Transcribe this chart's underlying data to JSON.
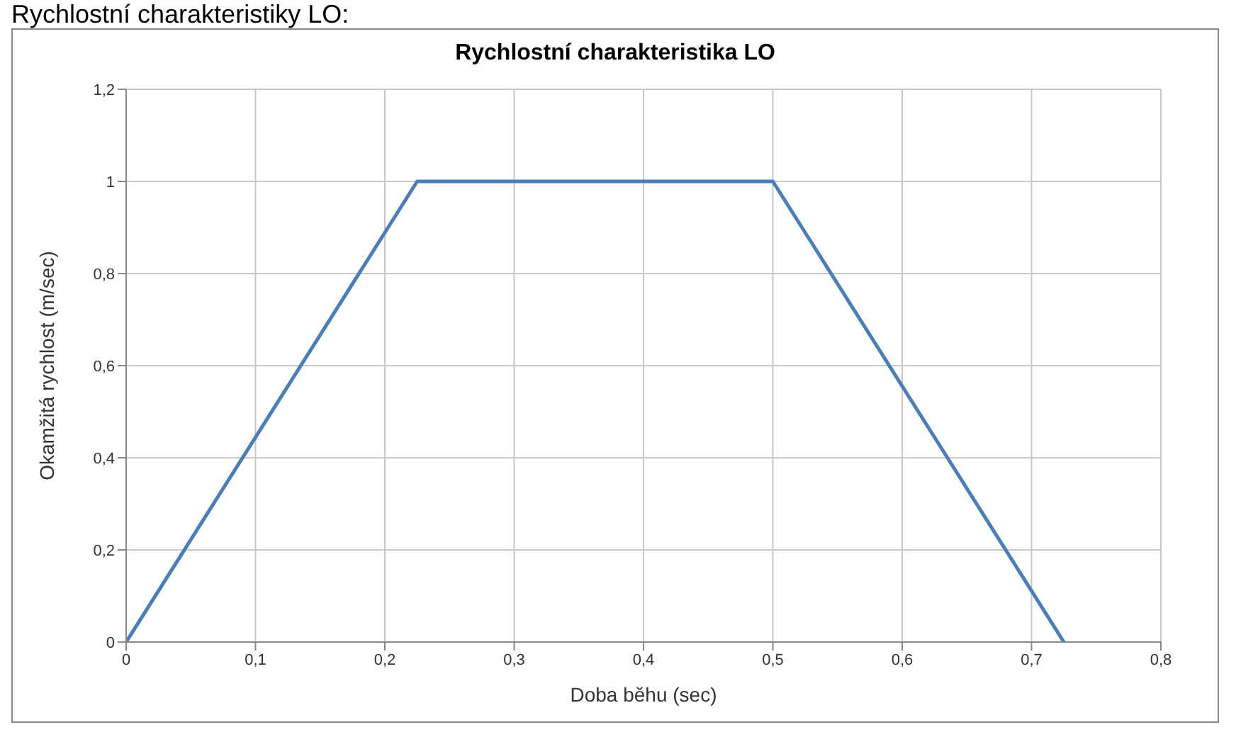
{
  "chart_data": {
    "type": "line",
    "title": "Rychlostní charakteristika LO",
    "xlabel": "Doba běhu (sec)",
    "ylabel": "Okamžitá rychlost (m/sec)",
    "annotations": [
      "Rychlostní charakteristiky LO:"
    ],
    "x": [
      0,
      0.225,
      0.5,
      0.725
    ],
    "series": [
      {
        "color": "#4a7ebb",
        "values": [
          0,
          1,
          1,
          0
        ]
      }
    ],
    "xlim": [
      0,
      0.8
    ],
    "xticks": [
      0,
      {
        "value": 0.1,
        "label": "0,1"
      },
      {
        "value": 0.2,
        "label": "0,2"
      },
      {
        "value": 0.3,
        "label": "0,3"
      },
      {
        "value": 0.4,
        "label": "0,4"
      },
      {
        "value": 0.5,
        "label": "0,5"
      },
      {
        "value": 0.6,
        "label": "0,6"
      },
      {
        "value": 0.7,
        "label": "0,7"
      },
      {
        "value": 0.8,
        "label": "0,8"
      }
    ],
    "ylim": [
      0,
      1.2
    ],
    "yticks": [
      0,
      {
        "value": 0.2,
        "label": "0,2"
      },
      {
        "value": 0.4,
        "label": "0,4"
      },
      {
        "value": 0.6,
        "label": "0,6"
      },
      {
        "value": 0.8,
        "label": "0,8"
      },
      1,
      {
        "value": 1.2,
        "label": "1,2"
      }
    ],
    "grid": true,
    "marker": "none",
    "line_style": "solid"
  }
}
